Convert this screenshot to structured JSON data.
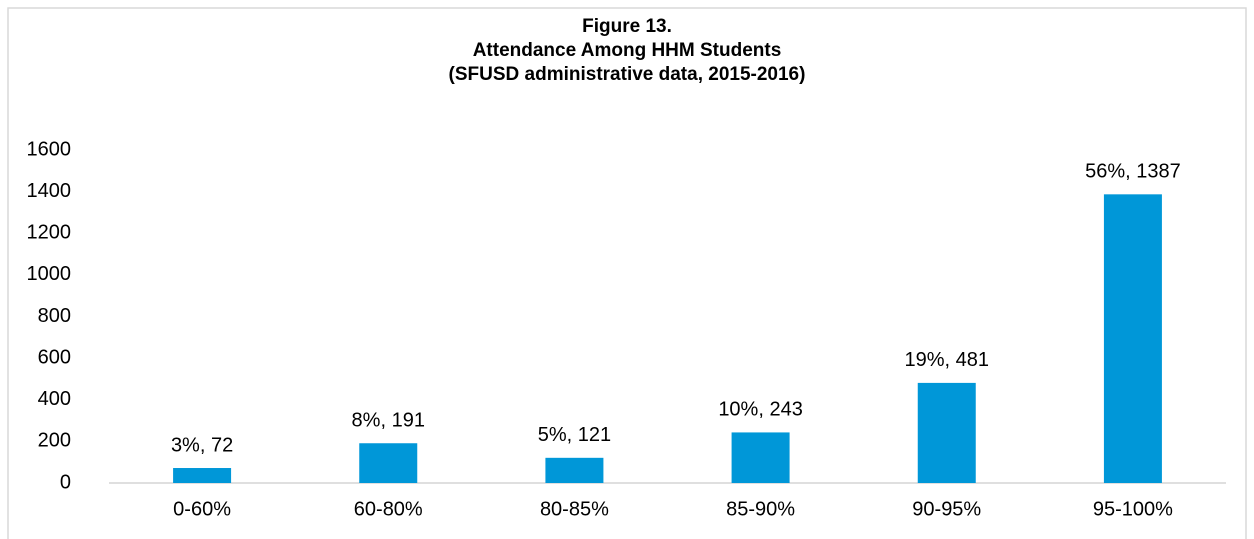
{
  "chart_data": {
    "type": "bar",
    "title": [
      "Figure 13.",
      "Attendance Among HHM Students",
      "(SFUSD administrative data, 2015-2016)"
    ],
    "categories": [
      "0-60%",
      "60-80%",
      "80-85%",
      "85-90%",
      "90-95%",
      "95-100%"
    ],
    "values": [
      72,
      191,
      121,
      243,
      481,
      1387
    ],
    "value_labels": [
      "3%, 72",
      "8%, 191",
      "5%, 121",
      "10%, 243",
      "19%, 481",
      "56%, 1387"
    ],
    "color": "#0097d8",
    "ylim": [
      0,
      1600
    ],
    "yticks": [
      0,
      200,
      400,
      600,
      800,
      1000,
      1200,
      1400,
      1600
    ],
    "grid": false
  }
}
